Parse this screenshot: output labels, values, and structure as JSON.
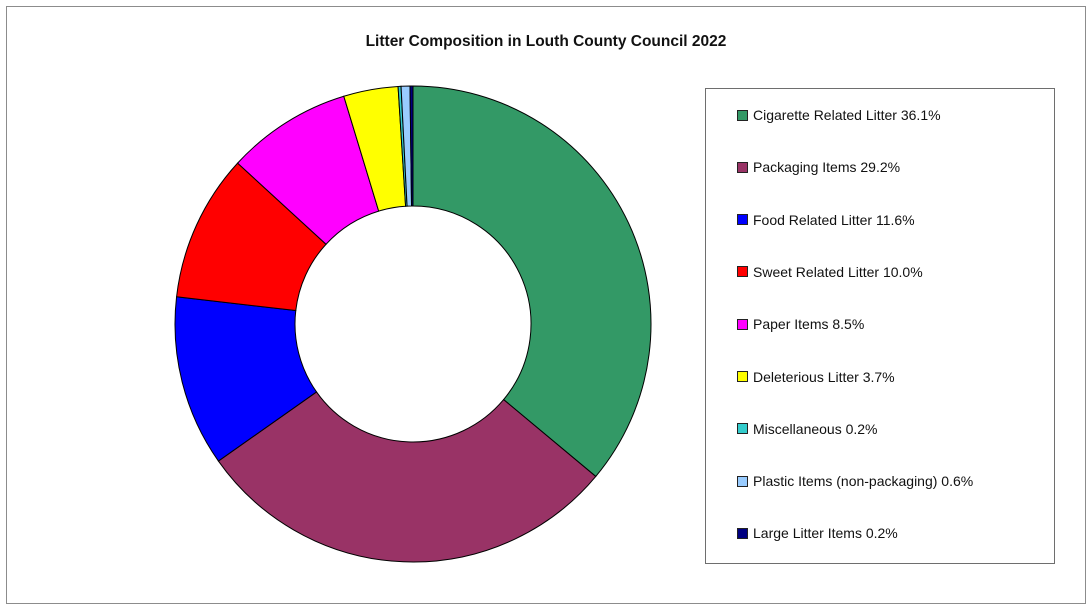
{
  "chart_data": {
    "type": "pie",
    "title": "Litter Composition in Louth County Council 2022",
    "legend_position": "right",
    "slices": [
      {
        "label": "Cigarette Related Litter 36.1%",
        "value": 36.1,
        "color": "#339966"
      },
      {
        "label": "Packaging Items 29.2%",
        "value": 29.2,
        "color": "#993366"
      },
      {
        "label": "Food Related Litter 11.6%",
        "value": 11.6,
        "color": "#0000ff"
      },
      {
        "label": "Sweet Related Litter 10.0%",
        "value": 10.0,
        "color": "#ff0000"
      },
      {
        "label": "Paper Items 8.5%",
        "value": 8.5,
        "color": "#ff00ff"
      },
      {
        "label": "Deleterious Litter 3.7%",
        "value": 3.7,
        "color": "#ffff00"
      },
      {
        "label": "Miscellaneous 0.2%",
        "value": 0.2,
        "color": "#33cccc"
      },
      {
        "label": "Plastic Items (non-packaging) 0.6%",
        "value": 0.6,
        "color": "#99ccff"
      },
      {
        "label": "Large Litter Items 0.2%",
        "value": 0.2,
        "color": "#000080"
      }
    ]
  }
}
